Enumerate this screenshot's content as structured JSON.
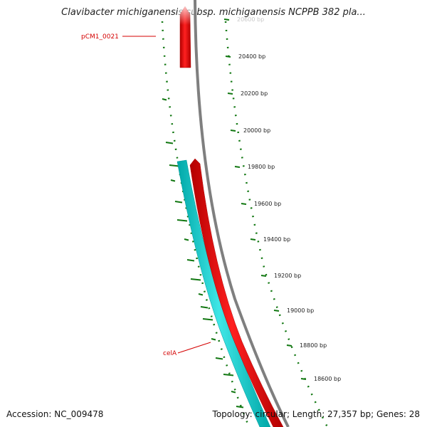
{
  "title": "Clavibacter michiganensis subsp. michiganensis NCPPB 382 pla...",
  "footer": {
    "accession": "Accession: NC_009478",
    "summary": "Topology: circular; Length: 27,357 bp; Genes: 28"
  },
  "ticks": [
    {
      "label": "20600 bp"
    },
    {
      "label": "20400 bp"
    },
    {
      "label": "20200 bp"
    },
    {
      "label": "20000 bp"
    },
    {
      "label": "19800 bp"
    },
    {
      "label": "19600 bp"
    },
    {
      "label": "19400 bp"
    },
    {
      "label": "19200 bp"
    },
    {
      "label": "19000 bp"
    },
    {
      "label": "18800 bp"
    },
    {
      "label": "18600 bp"
    }
  ],
  "genes": [
    {
      "name": "pCM1_0021",
      "strand": "forward",
      "color": "#ff0000"
    },
    {
      "name": "celA",
      "strand": "forward",
      "color": "#ff0000"
    },
    {
      "name": "",
      "strand": "reverse",
      "color": "#00cccc"
    }
  ],
  "colors": {
    "backbone": "#808080",
    "gc_ticks": "#117711",
    "gene_label": "#d40000"
  }
}
